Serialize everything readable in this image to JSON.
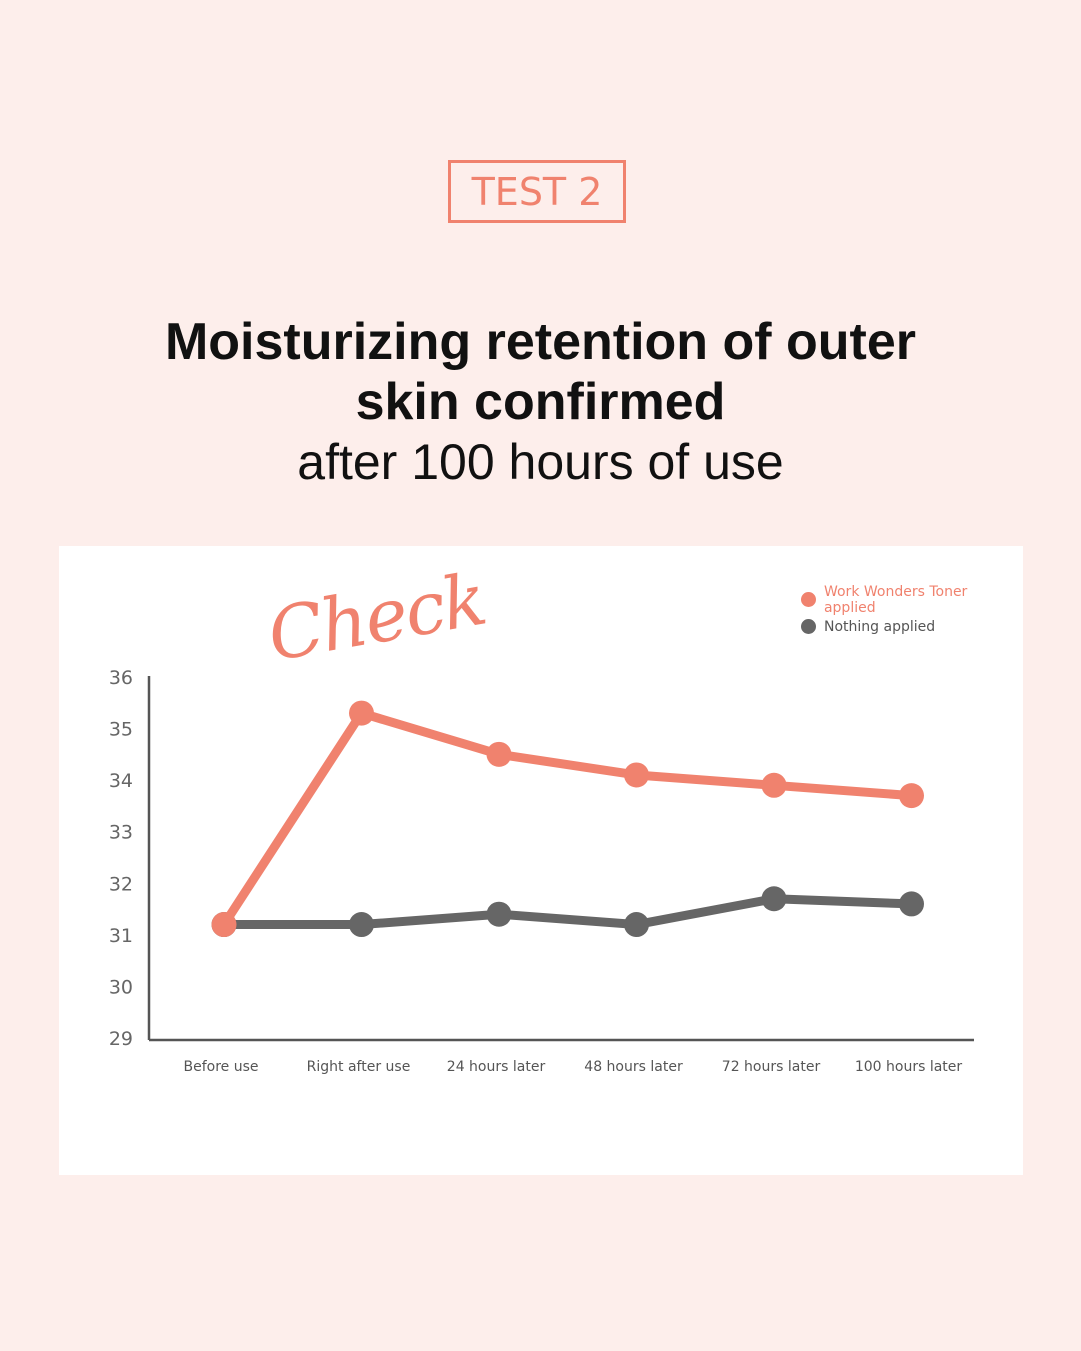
{
  "badge": "TEST 2",
  "headline": {
    "line1": "Moisturizing retention of outer",
    "line2": "skin confirmed",
    "sub": "after 100 hours of use"
  },
  "stamp": "Check",
  "colors": {
    "background": "#fdeeeb",
    "accent": "#f0826e",
    "gray": "#666666"
  },
  "legend": [
    {
      "label": "Work Wonders Toner applied",
      "color": "#f0826e"
    },
    {
      "label": "Nothing applied",
      "color": "#666666"
    }
  ],
  "chart_data": {
    "type": "line",
    "categories": [
      "Before use",
      "Right after use",
      "24 hours later",
      "48 hours later",
      "72 hours later",
      "100 hours later"
    ],
    "ylim": [
      29,
      36
    ],
    "yticks": [
      29,
      30,
      31,
      32,
      33,
      34,
      35,
      36
    ],
    "series": [
      {
        "name": "Work Wonders Toner applied",
        "color": "#f0826e",
        "values": [
          31.2,
          35.3,
          34.5,
          34.1,
          33.9,
          33.7
        ]
      },
      {
        "name": "Nothing applied",
        "color": "#666666",
        "values": [
          31.2,
          31.2,
          31.4,
          31.2,
          31.7,
          31.6
        ]
      }
    ],
    "grid": false,
    "legend_position": "top-right"
  }
}
